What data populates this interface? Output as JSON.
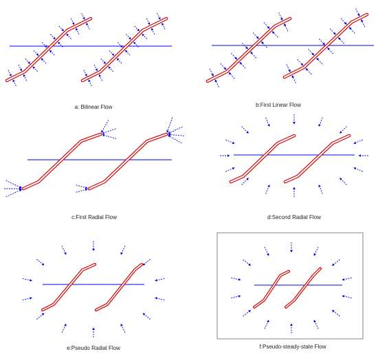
{
  "colors": {
    "fracture": "#d40000",
    "wellbore": "#0000ee",
    "flow_arrow": "#0000ee",
    "boundary": "#999999"
  },
  "panels": [
    {
      "id": "a",
      "caption": "a: Bilinear Flow"
    },
    {
      "id": "b",
      "caption": "b:First Linear Flow"
    },
    {
      "id": "c",
      "caption": "c:First Radial Flow"
    },
    {
      "id": "d",
      "caption": "d:Second Radial Flow"
    },
    {
      "id": "e",
      "caption": "e:Pseudo Radial Flow"
    },
    {
      "id": "f",
      "caption": "f:Pseudo-steady-state Flow"
    }
  ]
}
